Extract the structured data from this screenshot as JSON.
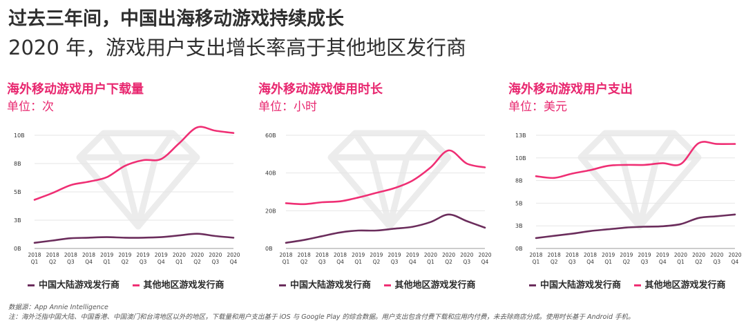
{
  "header": {
    "title": "过去三年间，中国出海移动游戏持续成长",
    "subtitle": "2020 年，游戏用户支出增长率高于其他地区发行商"
  },
  "colors": {
    "cn": "#6b2d5c",
    "other": "#ef2f74",
    "accent": "#e8276f"
  },
  "x_ticks": [
    [
      "2018",
      "Q1"
    ],
    [
      "2018",
      "Q2"
    ],
    [
      "2018",
      "Q3"
    ],
    [
      "2018",
      "Q4"
    ],
    [
      "2019",
      "Q1"
    ],
    [
      "2019",
      "Q2"
    ],
    [
      "2019",
      "Q3"
    ],
    [
      "2019",
      "Q4"
    ],
    [
      "2020",
      "Q1"
    ],
    [
      "2020",
      "Q2"
    ],
    [
      "2020",
      "Q3"
    ],
    [
      "2020",
      "Q4"
    ]
  ],
  "panels": [
    {
      "title": "海外移动游戏用户下载量",
      "unit": "单位：次",
      "legend": [
        "中国大陆游戏发行商",
        "其他地区游戏发行商"
      ]
    },
    {
      "title": "海外移动游戏使用时长",
      "unit": "单位：小时",
      "legend": [
        "中国大陆游戏发行商",
        "其他地区游戏发行商"
      ]
    },
    {
      "title": "海外移动游戏用户支出",
      "unit": "单位：美元",
      "legend": [
        "中国大陆游戏发行商",
        "其他地区游戏发行商"
      ]
    }
  ],
  "chart_data": [
    {
      "type": "line",
      "title": "海外移动游戏用户下载量",
      "ylabel": "单位：次",
      "ylim": [
        0,
        10
      ],
      "yticks": [
        0,
        2.5,
        5,
        7.5,
        10
      ],
      "ytick_labels": [
        "0B",
        "3B",
        "5B",
        "8B",
        "10B"
      ],
      "categories": [
        "2018 Q1",
        "2018 Q2",
        "2018 Q3",
        "2018 Q4",
        "2019 Q1",
        "2019 Q2",
        "2019 Q3",
        "2019 Q4",
        "2020 Q1",
        "2020 Q2",
        "2020 Q3",
        "2020 Q4"
      ],
      "series": [
        {
          "name": "中国大陆游戏发行商",
          "color": "#6b2d5c",
          "values": [
            0.5,
            0.7,
            0.9,
            0.95,
            1.0,
            0.95,
            0.95,
            1.0,
            1.15,
            1.3,
            1.1,
            0.95
          ]
        },
        {
          "name": "其他地区游戏发行商",
          "color": "#ef2f74",
          "values": [
            4.3,
            4.9,
            5.6,
            5.9,
            6.3,
            7.3,
            7.8,
            7.9,
            9.3,
            10.7,
            10.4,
            10.2
          ]
        }
      ]
    },
    {
      "type": "line",
      "title": "海外移动游戏使用时长",
      "ylabel": "单位：小时",
      "ylim": [
        0,
        60
      ],
      "yticks": [
        0,
        20,
        40,
        60
      ],
      "ytick_labels": [
        "0B",
        "20B",
        "40B",
        "60B"
      ],
      "categories": [
        "2018 Q1",
        "2018 Q2",
        "2018 Q3",
        "2018 Q4",
        "2019 Q1",
        "2019 Q2",
        "2019 Q3",
        "2019 Q4",
        "2020 Q1",
        "2020 Q2",
        "2020 Q3",
        "2020 Q4"
      ],
      "series": [
        {
          "name": "中国大陆游戏发行商",
          "color": "#6b2d5c",
          "values": [
            3,
            4.5,
            6.5,
            8.5,
            9.5,
            9.5,
            10.5,
            11.5,
            14,
            18,
            14.5,
            11
          ]
        },
        {
          "name": "其他地区游戏发行商",
          "color": "#ef2f74",
          "values": [
            24,
            23.5,
            24.5,
            25,
            27,
            29.5,
            32,
            36,
            43,
            52,
            45,
            43
          ]
        }
      ]
    },
    {
      "type": "line",
      "title": "海外移动游戏用户支出",
      "ylabel": "单位：美元",
      "ylim": [
        0,
        13
      ],
      "yticks": [
        0,
        2.6,
        5.2,
        7.8,
        10.4,
        13
      ],
      "ytick_labels": [
        "0B",
        "3B",
        "5B",
        "8B",
        "10B",
        "13B"
      ],
      "categories": [
        "2018 Q1",
        "2018 Q2",
        "2018 Q3",
        "2018 Q4",
        "2019 Q1",
        "2019 Q2",
        "2019 Q3",
        "2019 Q4",
        "2020 Q1",
        "2020 Q2",
        "2020 Q3",
        "2020 Q4"
      ],
      "series": [
        {
          "name": "中国大陆游戏发行商",
          "color": "#6b2d5c",
          "values": [
            1.2,
            1.45,
            1.7,
            2.0,
            2.2,
            2.4,
            2.5,
            2.55,
            2.8,
            3.5,
            3.7,
            3.9
          ]
        },
        {
          "name": "其他地区游戏发行商",
          "color": "#ef2f74",
          "values": [
            8.3,
            8.1,
            8.6,
            9.0,
            9.5,
            9.6,
            9.6,
            9.8,
            9.7,
            12.1,
            12.0,
            12.0
          ]
        }
      ]
    }
  ],
  "footer": {
    "source": "数据源：App Annie Intelligence",
    "note": "注：海外泛指中国大陆、中国香港、中国澳门和台湾地区以外的地区，下载量和用户支出基于 iOS 与 Google Play 的综合数据。用户支出包含付费下载和应用内付费，未去除商店分成。使用时长基于 Android 手机。"
  }
}
